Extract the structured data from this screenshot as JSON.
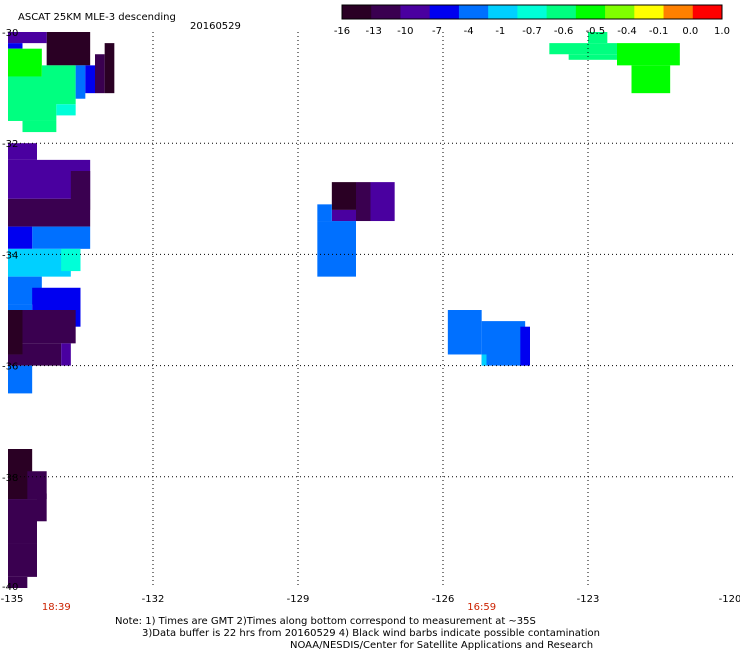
{
  "header": {
    "title": "ASCAT 25KM MLE-3 descending",
    "date": "20160529"
  },
  "colorbar": {
    "ticks": [
      "-16",
      "-13",
      "-10",
      "-7",
      "-4",
      "-1",
      "-0.7",
      "-0.6",
      "-0.5",
      "-0.4",
      "-0.1",
      "0.0",
      "1.0"
    ],
    "colors": [
      "#2a0024",
      "#3a0050",
      "#4a00a0",
      "#0000f0",
      "#0070ff",
      "#00d0ff",
      "#00ffd8",
      "#00ff80",
      "#00ff00",
      "#80ff00",
      "#ffff00",
      "#ff8000",
      "#ff0000"
    ]
  },
  "chart_data": {
    "type": "heatmap",
    "xlim": [
      -135,
      -120
    ],
    "ylim": [
      -40,
      -30
    ],
    "xticks": [
      "-135",
      "-132",
      "-129",
      "-126",
      "-123",
      "-120"
    ],
    "yticks": [
      "-30",
      "-32",
      "-34",
      "-36",
      "-38",
      "-40"
    ],
    "time_labels": [
      {
        "x": -134.0,
        "text": "18:39"
      },
      {
        "x": -125.2,
        "text": "16:59"
      }
    ],
    "cells": [
      {
        "lon0": -134.2,
        "lon1": -133.3,
        "lat0": -30.6,
        "lat1": -30.0,
        "v": -14
      },
      {
        "lon0": -135.0,
        "lon1": -134.2,
        "lat0": -30.2,
        "lat1": -30.0,
        "v": -8
      },
      {
        "lon0": -135.0,
        "lon1": -134.7,
        "lat0": -30.3,
        "lat1": -30.2,
        "v": -6
      },
      {
        "lon0": -135.0,
        "lon1": -134.3,
        "lat0": -30.8,
        "lat1": -30.3,
        "v": -0.5
      },
      {
        "lon0": -134.3,
        "lon1": -133.6,
        "lat0": -31.3,
        "lat1": -30.6,
        "v": -0.55
      },
      {
        "lon0": -133.6,
        "lon1": -133.4,
        "lat0": -31.2,
        "lat1": -30.6,
        "v": -1.5
      },
      {
        "lon0": -133.4,
        "lon1": -133.2,
        "lat0": -31.1,
        "lat1": -30.6,
        "v": -6
      },
      {
        "lon0": -133.2,
        "lon1": -133.0,
        "lat0": -31.1,
        "lat1": -30.4,
        "v": -11
      },
      {
        "lon0": -133.0,
        "lon1": -132.8,
        "lat0": -31.1,
        "lat1": -30.2,
        "v": -15
      },
      {
        "lon0": -135.0,
        "lon1": -134.0,
        "lat0": -31.6,
        "lat1": -30.8,
        "v": -0.55
      },
      {
        "lon0": -134.7,
        "lon1": -134.0,
        "lat0": -31.8,
        "lat1": -31.6,
        "v": -0.6
      },
      {
        "lon0": -134.0,
        "lon1": -133.6,
        "lat0": -31.5,
        "lat1": -31.3,
        "v": -0.7
      },
      {
        "lon0": -135.0,
        "lon1": -134.4,
        "lat0": -32.3,
        "lat1": -32.0,
        "v": -7.5
      },
      {
        "lon0": -135.0,
        "lon1": -133.3,
        "lat0": -33.0,
        "lat1": -32.3,
        "v": -9
      },
      {
        "lon0": -133.7,
        "lon1": -133.3,
        "lat0": -33.2,
        "lat1": -32.5,
        "v": -12
      },
      {
        "lon0": -135.0,
        "lon1": -133.3,
        "lat0": -33.5,
        "lat1": -33.0,
        "v": -12
      },
      {
        "lon0": -134.5,
        "lon1": -133.3,
        "lat0": -33.9,
        "lat1": -33.5,
        "v": -1.5
      },
      {
        "lon0": -135.0,
        "lon1": -134.5,
        "lat0": -33.9,
        "lat1": -33.5,
        "v": -5
      },
      {
        "lon0": -135.0,
        "lon1": -133.7,
        "lat0": -34.4,
        "lat1": -33.9,
        "v": -0.9
      },
      {
        "lon0": -133.9,
        "lon1": -133.5,
        "lat0": -34.3,
        "lat1": -33.9,
        "v": -0.7
      },
      {
        "lon0": -135.0,
        "lon1": -134.3,
        "lat0": -34.9,
        "lat1": -34.4,
        "v": -1.2
      },
      {
        "lon0": -134.5,
        "lon1": -133.5,
        "lat0": -35.3,
        "lat1": -34.6,
        "v": -6.5
      },
      {
        "lon0": -135.0,
        "lon1": -134.5,
        "lat0": -35.0,
        "lat1": -34.9,
        "v": -4
      },
      {
        "lon0": -135.0,
        "lon1": -134.7,
        "lat0": -35.8,
        "lat1": -35.0,
        "v": -15
      },
      {
        "lon0": -134.7,
        "lon1": -133.6,
        "lat0": -35.6,
        "lat1": -35.0,
        "v": -11
      },
      {
        "lon0": -135.0,
        "lon1": -134.7,
        "lat0": -36.0,
        "lat1": -35.8,
        "v": -13
      },
      {
        "lon0": -134.7,
        "lon1": -133.9,
        "lat0": -36.0,
        "lat1": -35.6,
        "v": -13
      },
      {
        "lon0": -133.9,
        "lon1": -133.7,
        "lat0": -36.0,
        "lat1": -35.6,
        "v": -8
      },
      {
        "lon0": -135.0,
        "lon1": -134.5,
        "lat0": -36.5,
        "lat1": -36.0,
        "v": -1.2
      },
      {
        "lon0": -135.0,
        "lon1": -134.5,
        "lat0": -38.4,
        "lat1": -37.5,
        "v": -14
      },
      {
        "lon0": -134.6,
        "lon1": -134.2,
        "lat0": -38.4,
        "lat1": -37.9,
        "v": -13
      },
      {
        "lon0": -135.0,
        "lon1": -134.4,
        "lat0": -39.2,
        "lat1": -38.4,
        "v": -11
      },
      {
        "lon0": -134.4,
        "lon1": -134.2,
        "lat0": -38.8,
        "lat1": -38.3,
        "v": -10.5
      },
      {
        "lon0": -135.0,
        "lon1": -134.4,
        "lat0": -39.8,
        "lat1": -39.2,
        "v": -12
      },
      {
        "lon0": -135.0,
        "lon1": -134.6,
        "lat0": -40.0,
        "lat1": -39.8,
        "v": -13
      },
      {
        "lon0": -128.3,
        "lon1": -127.8,
        "lat0": -33.2,
        "lat1": -32.7,
        "v": -15
      },
      {
        "lon0": -127.8,
        "lon1": -127.5,
        "lat0": -33.4,
        "lat1": -32.7,
        "v": -12
      },
      {
        "lon0": -127.5,
        "lon1": -127.0,
        "lat0": -33.4,
        "lat1": -32.7,
        "v": -10
      },
      {
        "lon0": -128.3,
        "lon1": -127.8,
        "lat0": -33.4,
        "lat1": -33.2,
        "v": -7.5
      },
      {
        "lon0": -128.6,
        "lon1": -128.3,
        "lat0": -33.4,
        "lat1": -33.1,
        "v": -1.5
      },
      {
        "lon0": -128.6,
        "lon1": -127.8,
        "lat0": -34.4,
        "lat1": -33.4,
        "v": -1.5
      },
      {
        "lon0": -125.9,
        "lon1": -125.2,
        "lat0": -35.8,
        "lat1": -35.0,
        "v": -4
      },
      {
        "lon0": -125.2,
        "lon1": -124.3,
        "lat0": -36.0,
        "lat1": -35.2,
        "v": -1.5
      },
      {
        "lon0": -124.4,
        "lon1": -124.2,
        "lat0": -36.0,
        "lat1": -35.3,
        "v": -6
      },
      {
        "lon0": -125.2,
        "lon1": -125.1,
        "lat0": -36.0,
        "lat1": -35.8,
        "v": -1
      },
      {
        "lon0": -123.0,
        "lon1": -122.6,
        "lat0": -30.2,
        "lat1": -30.0,
        "v": -0.55
      },
      {
        "lon0": -123.8,
        "lon1": -122.4,
        "lat0": -30.4,
        "lat1": -30.2,
        "v": -0.55
      },
      {
        "lon0": -123.4,
        "lon1": -122.2,
        "lat0": -30.5,
        "lat1": -30.4,
        "v": -0.6
      },
      {
        "lon0": -122.4,
        "lon1": -121.1,
        "lat0": -30.6,
        "lat1": -30.2,
        "v": -0.5
      },
      {
        "lon0": -122.1,
        "lon1": -121.3,
        "lat0": -31.1,
        "lat1": -30.6,
        "v": -0.5
      }
    ]
  },
  "footer": {
    "note_line1": "Note: 1) Times are GMT 2)Times along bottom correspond to measurement at ~35S",
    "note_line2": "3)Data buffer is 22 hrs from 20160529 4) Black wind barbs indicate possible contamination",
    "credit": "NOAA/NESDIS/Center for Satellite Applications and Research"
  }
}
